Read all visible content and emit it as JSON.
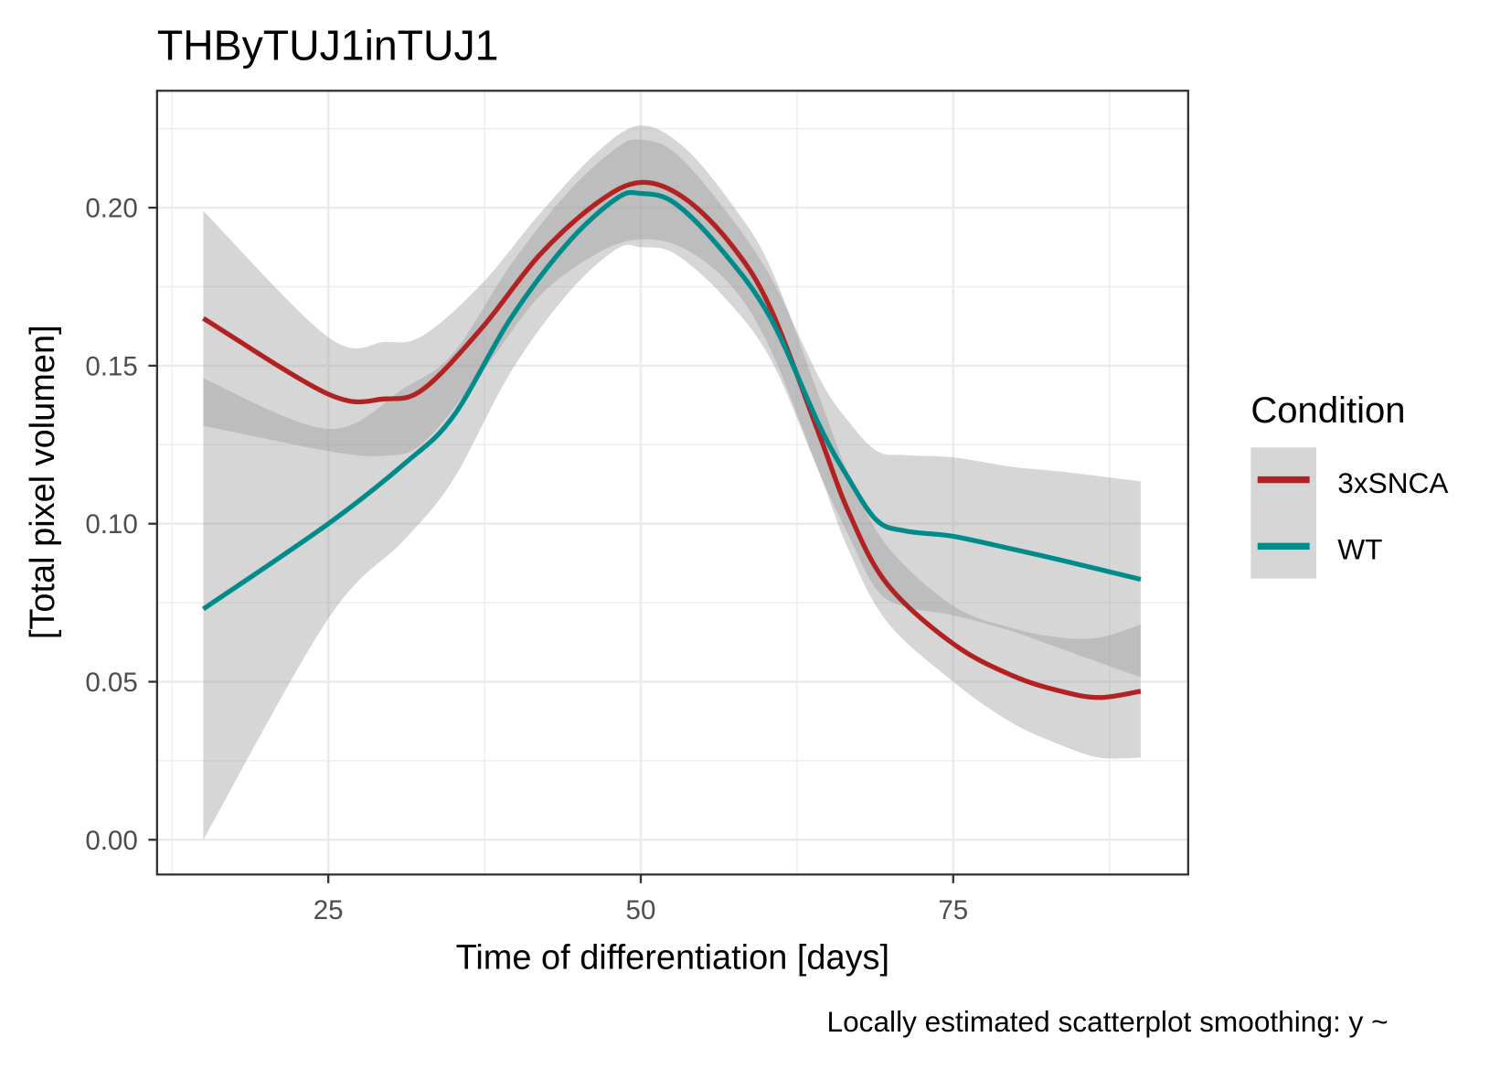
{
  "chart_data": {
    "type": "line",
    "title": "THByTUJ1inTUJ1",
    "xlabel": "Time of differentiation [days]",
    "ylabel": "[Total pixel volumen]",
    "caption": "Locally estimated scatterplot smoothing: y ~",
    "xlim": [
      11.3,
      93.8
    ],
    "ylim": [
      -0.011,
      0.237
    ],
    "xticks": [
      25,
      50,
      75
    ],
    "xtick_labels": [
      "25",
      "50",
      "75"
    ],
    "yticks": [
      0,
      0.05,
      0.1,
      0.15,
      0.2
    ],
    "ytick_labels": [
      "0.00",
      "0.05",
      "0.10",
      "0.15",
      "0.20"
    ],
    "grid": true,
    "legend": {
      "title": "Condition",
      "placement": "right"
    },
    "series": [
      {
        "name": "3xSNCA",
        "color": "#B22222",
        "x": [
          15,
          25,
          29.5,
          32.6,
          37.3,
          41.9,
          46.5,
          50,
          53.5,
          57.3,
          60.4,
          64.3,
          66.6,
          69.7,
          75,
          79.7,
          83.6,
          86.7,
          90
        ],
        "y": [
          0.165,
          0.141,
          0.1395,
          0.1426,
          0.162,
          0.185,
          0.2015,
          0.208,
          0.203,
          0.188,
          0.168,
          0.128,
          0.104,
          0.081,
          0.062,
          0.052,
          0.047,
          0.045,
          0.047
        ],
        "se_halfwidth": [
          0.034,
          0.018,
          0.018,
          0.017,
          0.014,
          0.013,
          0.016,
          0.018,
          0.016,
          0.013,
          0.013,
          0.012,
          0.012,
          0.012,
          0.012,
          0.015,
          0.017,
          0.019,
          0.021
        ]
      },
      {
        "name": "WT",
        "color": "#008B8B",
        "x": [
          15,
          25,
          31.1,
          35,
          39.6,
          44.2,
          48.1,
          50,
          52.7,
          56.6,
          60.4,
          64.3,
          66.6,
          68.9,
          71.2,
          75,
          79.7,
          83.6,
          90
        ],
        "y": [
          0.073,
          0.1,
          0.119,
          0.134,
          0.165,
          0.189,
          0.203,
          0.2045,
          0.2015,
          0.186,
          0.165,
          0.131,
          0.1145,
          0.101,
          0.0977,
          0.096,
          0.092,
          0.0885,
          0.0824
        ],
        "se_halfwidth": [
          0.073,
          0.03,
          0.024,
          0.02,
          0.017,
          0.016,
          0.016,
          0.017,
          0.016,
          0.014,
          0.013,
          0.015,
          0.018,
          0.022,
          0.024,
          0.025,
          0.026,
          0.028,
          0.031
        ]
      }
    ]
  }
}
